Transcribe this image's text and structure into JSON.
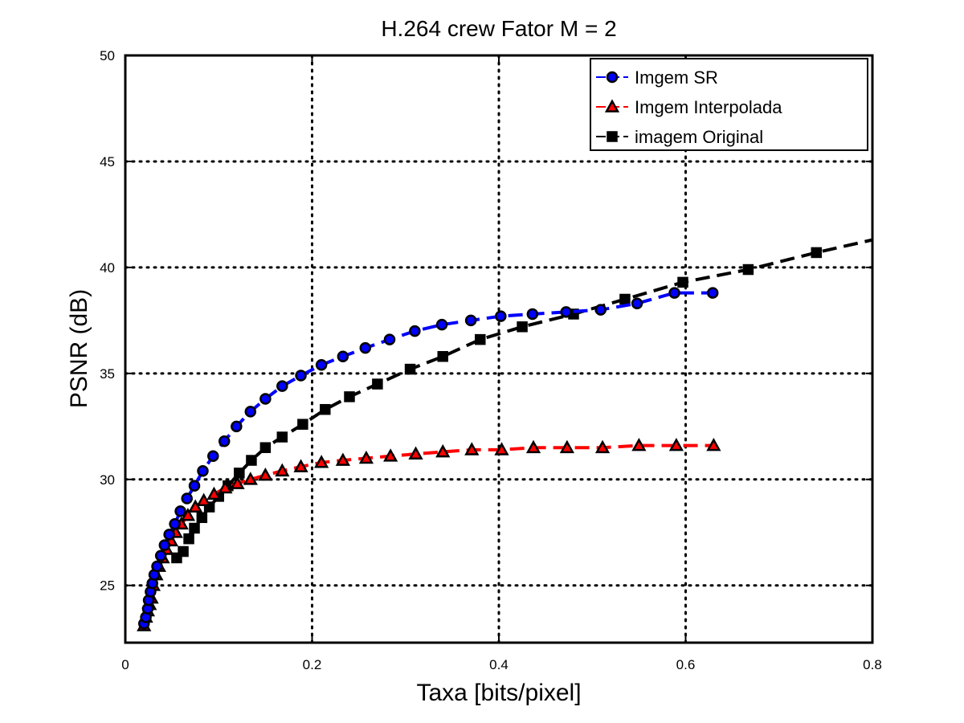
{
  "chart_data": {
    "type": "line",
    "title": "H.264 crew Fator M = 2",
    "xlabel": "Taxa [bits/pixel]",
    "ylabel": "PSNR (dB)",
    "xlim": [
      0,
      0.8
    ],
    "ylim": [
      22.3,
      50
    ],
    "xticks": [
      0,
      0.2,
      0.4,
      0.6,
      0.8
    ],
    "xtick_labels": [
      "0",
      "0.2",
      "0.4",
      "0.6",
      "0.8"
    ],
    "yticks": [
      25,
      30,
      35,
      40,
      45,
      50
    ],
    "ytick_labels": [
      "25",
      "30",
      "35",
      "40",
      "45",
      "50"
    ],
    "grid": true,
    "legend_position": "top-right",
    "series": [
      {
        "name": "Imgem SR",
        "color": "#0000ff",
        "marker": "circle",
        "x": [
          0.02,
          0.022,
          0.024,
          0.025,
          0.027,
          0.029,
          0.031,
          0.034,
          0.038,
          0.042,
          0.047,
          0.053,
          0.059,
          0.066,
          0.074,
          0.083,
          0.094,
          0.106,
          0.119,
          0.134,
          0.15,
          0.168,
          0.188,
          0.21,
          0.233,
          0.257,
          0.283,
          0.31,
          0.339,
          0.37,
          0.402,
          0.436,
          0.472,
          0.509,
          0.548,
          0.588,
          0.629
        ],
        "y": [
          23.2,
          23.5,
          23.9,
          24.3,
          24.7,
          25.1,
          25.5,
          25.9,
          26.4,
          26.9,
          27.4,
          27.9,
          28.5,
          29.1,
          29.7,
          30.4,
          31.1,
          31.8,
          32.5,
          33.2,
          33.8,
          34.4,
          34.9,
          35.4,
          35.8,
          36.2,
          36.6,
          37.0,
          37.3,
          37.5,
          37.7,
          37.8,
          37.9,
          38.0,
          38.3,
          38.8,
          38.8
        ]
      },
      {
        "name": "Imgem Interpolada",
        "color": "#ff0000",
        "marker": "triangle",
        "x": [
          0.02,
          0.022,
          0.024,
          0.026,
          0.028,
          0.03,
          0.033,
          0.036,
          0.04,
          0.044,
          0.049,
          0.054,
          0.06,
          0.067,
          0.075,
          0.084,
          0.095,
          0.107,
          0.12,
          0.134,
          0.15,
          0.168,
          0.188,
          0.21,
          0.233,
          0.258,
          0.284,
          0.311,
          0.34,
          0.371,
          0.403,
          0.437,
          0.473,
          0.511,
          0.55,
          0.59,
          0.63
        ],
        "y": [
          23.1,
          23.5,
          23.8,
          24.1,
          24.4,
          25.0,
          25.5,
          25.9,
          26.3,
          26.7,
          27.1,
          27.5,
          27.9,
          28.3,
          28.7,
          29.0,
          29.3,
          29.6,
          29.8,
          30.0,
          30.2,
          30.4,
          30.6,
          30.8,
          30.9,
          31.0,
          31.1,
          31.2,
          31.3,
          31.4,
          31.4,
          31.5,
          31.5,
          31.5,
          31.6,
          31.6,
          31.6
        ]
      },
      {
        "name": "imagem Original",
        "color": "#000000",
        "marker": "square",
        "x": [
          0.055,
          0.062,
          0.068,
          0.074,
          0.082,
          0.09,
          0.1,
          0.11,
          0.122,
          0.135,
          0.15,
          0.168,
          0.19,
          0.214,
          0.24,
          0.27,
          0.305,
          0.34,
          0.38,
          0.425,
          0.48,
          0.535,
          0.597,
          0.667,
          0.74,
          0.82
        ],
        "y": [
          26.3,
          26.6,
          27.2,
          27.7,
          28.2,
          28.7,
          29.2,
          29.7,
          30.3,
          30.9,
          31.5,
          32.0,
          32.6,
          33.3,
          33.9,
          34.5,
          35.2,
          35.8,
          36.6,
          37.2,
          37.8,
          38.5,
          39.3,
          39.9,
          40.7,
          41.5
        ]
      }
    ]
  }
}
